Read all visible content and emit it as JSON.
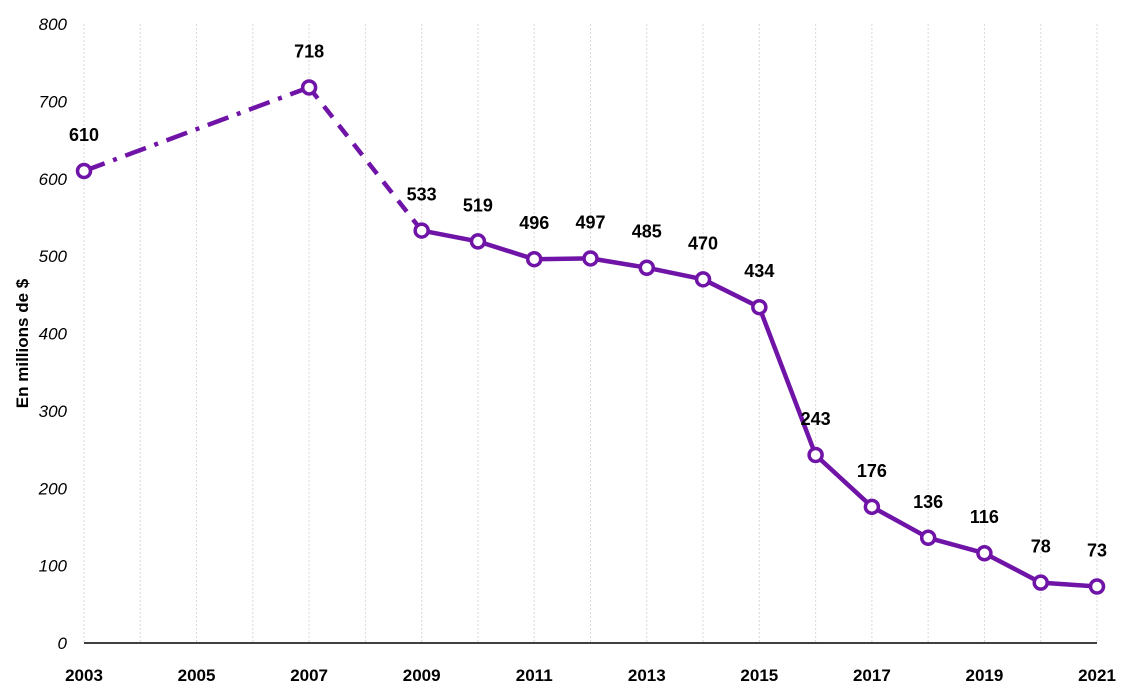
{
  "chart_data": {
    "type": "line",
    "ylabel": "En millions de $",
    "xlabel": "",
    "ylim": [
      0,
      800
    ],
    "yticks": [
      0,
      100,
      200,
      300,
      400,
      500,
      600,
      700,
      800
    ],
    "xlim": [
      2003,
      2021
    ],
    "xtick_labels": [
      "2003",
      "2005",
      "2007",
      "2009",
      "2011",
      "2013",
      "2015",
      "2017",
      "2019",
      "2021"
    ],
    "grid": "vertical",
    "line_color": "#7014a8",
    "points": [
      {
        "x": 2003,
        "y": 610,
        "label": "610"
      },
      {
        "x": 2007,
        "y": 718,
        "label": "718"
      },
      {
        "x": 2009,
        "y": 533,
        "label": "533"
      },
      {
        "x": 2010,
        "y": 519,
        "label": "519"
      },
      {
        "x": 2011,
        "y": 496,
        "label": "496"
      },
      {
        "x": 2012,
        "y": 497,
        "label": "497"
      },
      {
        "x": 2013,
        "y": 485,
        "label": "485"
      },
      {
        "x": 2014,
        "y": 470,
        "label": "470"
      },
      {
        "x": 2015,
        "y": 434,
        "label": "434"
      },
      {
        "x": 2016,
        "y": 243,
        "label": "243"
      },
      {
        "x": 2017,
        "y": 176,
        "label": "176"
      },
      {
        "x": 2018,
        "y": 136,
        "label": "136"
      },
      {
        "x": 2019,
        "y": 116,
        "label": "116"
      },
      {
        "x": 2020,
        "y": 78,
        "label": "78"
      },
      {
        "x": 2021,
        "y": 73,
        "label": "73"
      }
    ],
    "segments": [
      {
        "from": 2003,
        "to": 2007,
        "style": "dash-dot"
      },
      {
        "from": 2007,
        "to": 2009,
        "style": "dashed"
      },
      {
        "from": 2009,
        "to": 2021,
        "style": "solid"
      }
    ]
  }
}
